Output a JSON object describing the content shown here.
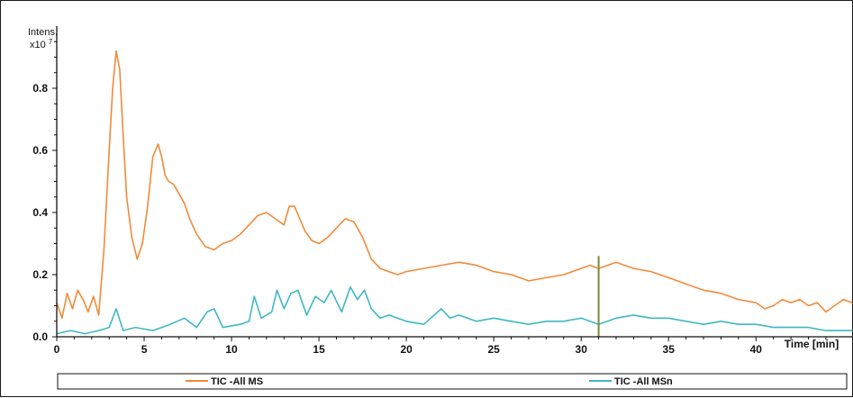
{
  "chart_data": {
    "type": "line",
    "y_unit_label": "Intens.",
    "y_multiplier_base": "x10",
    "y_multiplier_exp": "7",
    "xlabel": "Time [min]",
    "xlim": [
      0,
      45.5
    ],
    "ylim": [
      0,
      1.0
    ],
    "x_ticks": [
      0,
      5,
      10,
      15,
      20,
      25,
      30,
      35,
      40
    ],
    "x_tick_labels": [
      "0",
      "5",
      "10",
      "15",
      "20",
      "25",
      "30",
      "35",
      "40"
    ],
    "y_ticks": [
      0.0,
      0.2,
      0.4,
      0.6,
      0.8
    ],
    "y_tick_labels": [
      "0.0",
      "0.2",
      "0.4",
      "0.6",
      "0.8"
    ],
    "legend_position": "bottom",
    "series": [
      {
        "name": "TIC -All MS",
        "color": "#F28A3A",
        "x": [
          0,
          0.3,
          0.6,
          0.9,
          1.2,
          1.5,
          1.8,
          2.1,
          2.4,
          2.7,
          3.0,
          3.2,
          3.4,
          3.6,
          3.8,
          4.0,
          4.3,
          4.6,
          4.9,
          5.2,
          5.5,
          5.8,
          6.0,
          6.2,
          6.4,
          6.7,
          7.0,
          7.3,
          7.6,
          8.0,
          8.5,
          9.0,
          9.5,
          10.0,
          10.5,
          11.0,
          11.5,
          12.0,
          12.5,
          13.0,
          13.3,
          13.6,
          13.9,
          14.2,
          14.6,
          15.0,
          15.5,
          16.0,
          16.5,
          17.0,
          17.5,
          18.0,
          18.5,
          19.0,
          19.5,
          20.0,
          21.0,
          22.0,
          23.0,
          24.0,
          25.0,
          26.0,
          27.0,
          28.0,
          29.0,
          30.0,
          30.5,
          31.0,
          32.0,
          33.0,
          34.0,
          35.0,
          36.0,
          37.0,
          38.0,
          39.0,
          40.0,
          40.5,
          41.0,
          41.5,
          42.0,
          42.5,
          43.0,
          43.5,
          44.0,
          44.5,
          45.0,
          45.5
        ],
        "y": [
          0.11,
          0.06,
          0.14,
          0.09,
          0.15,
          0.12,
          0.08,
          0.13,
          0.07,
          0.28,
          0.6,
          0.8,
          0.92,
          0.86,
          0.65,
          0.45,
          0.32,
          0.25,
          0.3,
          0.42,
          0.58,
          0.62,
          0.58,
          0.52,
          0.5,
          0.49,
          0.46,
          0.43,
          0.38,
          0.33,
          0.29,
          0.28,
          0.3,
          0.31,
          0.33,
          0.36,
          0.39,
          0.4,
          0.38,
          0.36,
          0.42,
          0.42,
          0.38,
          0.34,
          0.31,
          0.3,
          0.32,
          0.35,
          0.38,
          0.37,
          0.32,
          0.25,
          0.22,
          0.21,
          0.2,
          0.21,
          0.22,
          0.23,
          0.24,
          0.23,
          0.21,
          0.2,
          0.18,
          0.19,
          0.2,
          0.22,
          0.23,
          0.22,
          0.24,
          0.22,
          0.21,
          0.19,
          0.17,
          0.15,
          0.14,
          0.12,
          0.11,
          0.09,
          0.1,
          0.12,
          0.11,
          0.12,
          0.1,
          0.11,
          0.08,
          0.1,
          0.12,
          0.11
        ]
      },
      {
        "name": "TIC -All MSn",
        "color": "#3FB8C4",
        "x": [
          0,
          0.8,
          1.6,
          2.4,
          3.0,
          3.4,
          3.8,
          4.5,
          5.5,
          6.5,
          7.3,
          8.0,
          8.6,
          9.0,
          9.5,
          10.5,
          11.0,
          11.3,
          11.7,
          12.3,
          12.6,
          13.0,
          13.4,
          13.8,
          14.3,
          14.8,
          15.3,
          15.7,
          16.3,
          16.8,
          17.2,
          17.6,
          18.0,
          18.5,
          19.0,
          20.0,
          21.0,
          22.0,
          22.5,
          23.0,
          24.0,
          25.0,
          26.0,
          27.0,
          28.0,
          29.0,
          30.0,
          31.0,
          32.0,
          33.0,
          34.0,
          35.0,
          36.0,
          37.0,
          38.0,
          39.0,
          40.0,
          41.0,
          42.0,
          43.0,
          44.0,
          45.0,
          45.5
        ],
        "y": [
          0.01,
          0.02,
          0.01,
          0.02,
          0.03,
          0.09,
          0.02,
          0.03,
          0.02,
          0.04,
          0.06,
          0.03,
          0.08,
          0.09,
          0.03,
          0.04,
          0.05,
          0.13,
          0.06,
          0.08,
          0.15,
          0.09,
          0.14,
          0.15,
          0.07,
          0.13,
          0.11,
          0.15,
          0.08,
          0.16,
          0.12,
          0.15,
          0.09,
          0.06,
          0.07,
          0.05,
          0.04,
          0.09,
          0.06,
          0.07,
          0.05,
          0.06,
          0.05,
          0.04,
          0.05,
          0.05,
          0.06,
          0.04,
          0.06,
          0.07,
          0.06,
          0.06,
          0.05,
          0.04,
          0.05,
          0.04,
          0.04,
          0.03,
          0.03,
          0.03,
          0.02,
          0.02,
          0.02
        ]
      }
    ],
    "marker": {
      "x": 31.0,
      "y_top": 0.26,
      "color": "#7A8A3A"
    }
  }
}
